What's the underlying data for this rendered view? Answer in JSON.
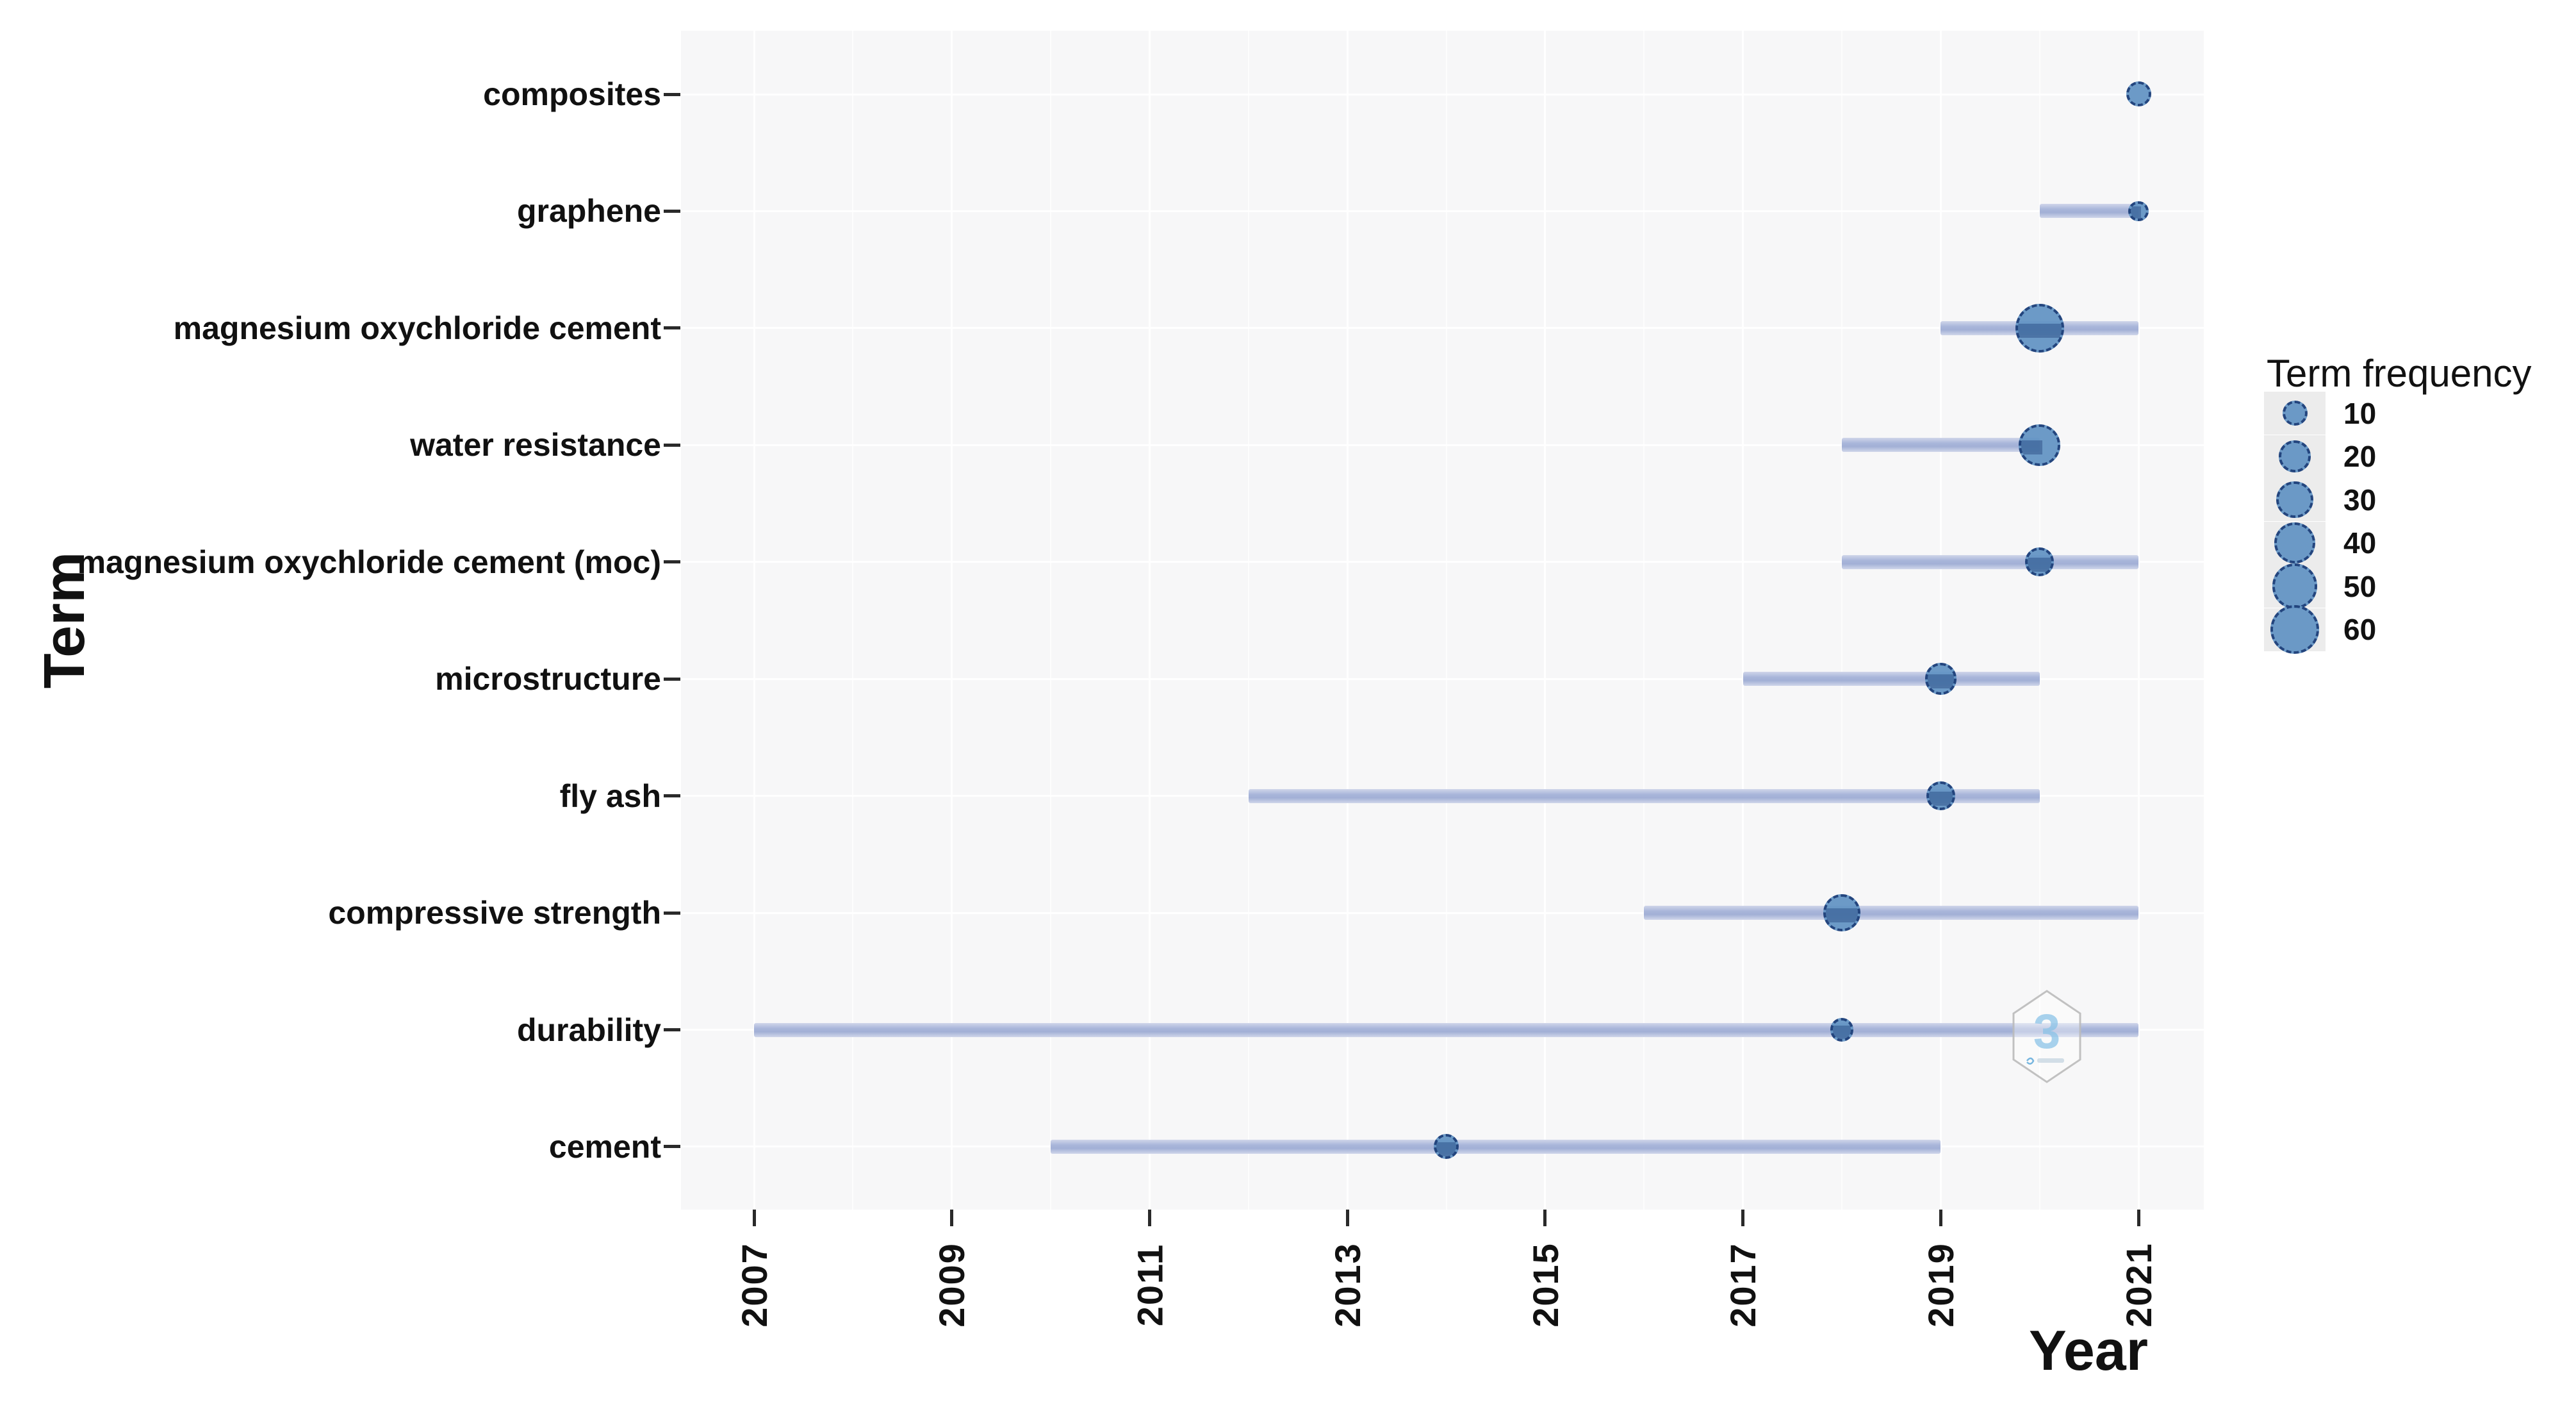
{
  "axes": {
    "y_title": "Term",
    "x_title": "Year"
  },
  "legend": {
    "title": "Term frequency",
    "items": [
      {
        "label": "10",
        "value": 10
      },
      {
        "label": "20",
        "value": 20
      },
      {
        "label": "30",
        "value": 30
      },
      {
        "label": "40",
        "value": 40
      },
      {
        "label": "50",
        "value": 50
      },
      {
        "label": "60",
        "value": 60
      }
    ]
  },
  "watermark": {
    "glyph": "3"
  },
  "colors": {
    "bubble_fill": "#6192c3",
    "bubble_border": "#23457e",
    "range_line": "#a9b6da",
    "range_line_edge": "#d0d6ea",
    "panel_bg": "#f7f7f8",
    "grid": "#ffffff",
    "text": "#111111"
  },
  "chart_data": {
    "type": "scatter",
    "subtype": "bubble-timeline (trend topics)",
    "title": "",
    "xlabel": "Year",
    "ylabel": "Term",
    "x_ticks": [
      2007,
      2009,
      2011,
      2013,
      2015,
      2017,
      2019,
      2021
    ],
    "x_range": [
      2006.3,
      2021.7
    ],
    "grid": "on",
    "legend": {
      "title": "Term frequency",
      "position": "right",
      "sizes": [
        10,
        20,
        30,
        40,
        50,
        60
      ]
    },
    "encoding": "Per term: horizontal band spans first-to-last quartile year; bubble sits at peak year and is sized by term frequency",
    "terms": [
      {
        "term": "composites",
        "year_q1": 2021,
        "year_peak": 2021,
        "year_q3": 2021,
        "frequency": 10
      },
      {
        "term": "graphene",
        "year_q1": 2020,
        "year_peak": 2021,
        "year_q3": 2021,
        "frequency": 5
      },
      {
        "term": "magnesium oxychloride cement",
        "year_q1": 2019,
        "year_peak": 2020,
        "year_q3": 2021,
        "frequency": 60
      },
      {
        "term": "water resistance",
        "year_q1": 2018,
        "year_peak": 2020,
        "year_q3": 2020,
        "frequency": 40
      },
      {
        "term": "magnesium oxychloride cement (moc)",
        "year_q1": 2018,
        "year_peak": 2020,
        "year_q3": 2021,
        "frequency": 15
      },
      {
        "term": "microstructure",
        "year_q1": 2017,
        "year_peak": 2019,
        "year_q3": 2020,
        "frequency": 20
      },
      {
        "term": "fly ash",
        "year_q1": 2012,
        "year_peak": 2019,
        "year_q3": 2020,
        "frequency": 15
      },
      {
        "term": "compressive strength",
        "year_q1": 2016,
        "year_peak": 2018,
        "year_q3": 2021,
        "frequency": 30
      },
      {
        "term": "durability",
        "year_q1": 2007,
        "year_peak": 2018,
        "year_q3": 2021,
        "frequency": 8
      },
      {
        "term": "cement",
        "year_q1": 2010,
        "year_peak": 2014,
        "year_q3": 2019,
        "frequency": 10
      }
    ]
  }
}
